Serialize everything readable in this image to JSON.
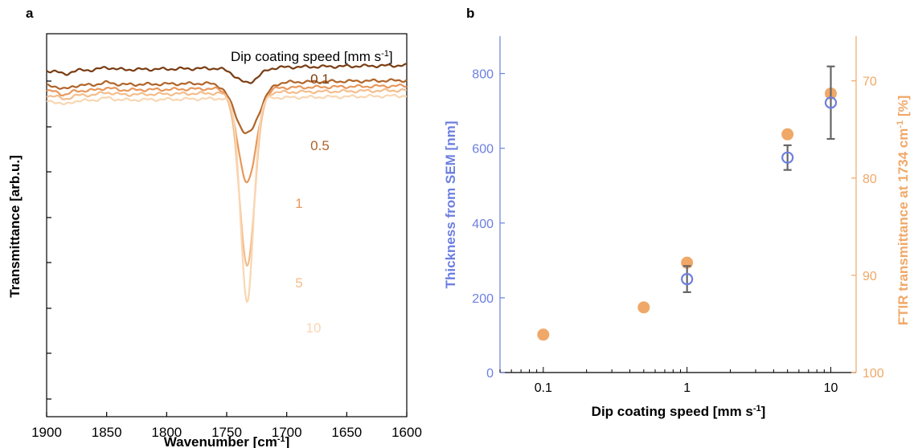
{
  "chart_data": [
    {
      "panel": "a",
      "type": "line",
      "xlabel": "Wavenumber [cm",
      "xlabel_sup": "-1",
      "xlabel_end": "]",
      "ylabel": "Transmittance [arb.u.]",
      "xlim": [
        1900,
        1600
      ],
      "x_ticks": [
        1900,
        1850,
        1800,
        1750,
        1700,
        1650,
        1600
      ],
      "legend_title": "Dip coating speed [mm  s",
      "legend_title_sup": "-1",
      "legend_title_end": "]",
      "peak_position": 1733,
      "series": [
        {
          "name": "0.1",
          "color": "#7a3c12",
          "baseline": 0.8,
          "depth": 0.33,
          "width": 13
        },
        {
          "name": "0.5",
          "color": "#b06428",
          "baseline": 0.47,
          "depth": 1.12,
          "width": 14
        },
        {
          "name": "1",
          "color": "#e8985c",
          "baseline": 0.35,
          "depth": 2.05,
          "width": 11
        },
        {
          "name": "5",
          "color": "#f4bd8c",
          "baseline": 0.25,
          "depth": 3.8,
          "width": 9
        },
        {
          "name": "10",
          "color": "#f9d6b2",
          "baseline": 0.13,
          "depth": 4.5,
          "width": 7.5
        }
      ]
    },
    {
      "panel": "b",
      "type": "scatter",
      "xlabel": "Dip coating speed [mm s",
      "xlabel_sup": "-1",
      "xlabel_end": "]",
      "ylabel_left": "Thickness from SEM [nm]",
      "ylabel_right": "FTIR transmittance at 1734 cm",
      "ylabel_right_sup": "-1",
      "ylabel_right_end": " [%]",
      "x_scale": "log",
      "xlim": [
        0.05,
        15
      ],
      "x_ticks": [
        "0.1",
        "1",
        "10"
      ],
      "ylim_left": [
        0,
        900
      ],
      "y_ticks_left": [
        0,
        200,
        400,
        600,
        800
      ],
      "ylim_right": [
        100,
        65.4
      ],
      "y_ticks_right": [
        70,
        80,
        90,
        100
      ],
      "thickness": {
        "color": "#6c7fe0",
        "points": [
          {
            "x": 1,
            "y": 250,
            "err": 35
          },
          {
            "x": 5,
            "y": 575,
            "err": 33
          },
          {
            "x": 10,
            "y": 722,
            "err": 97
          }
        ]
      },
      "ftir": {
        "color": "#f0a868",
        "points": [
          {
            "x": 0.1,
            "y": 96.1
          },
          {
            "x": 0.5,
            "y": 93.3
          },
          {
            "x": 1,
            "y": 88.7
          },
          {
            "x": 5,
            "y": 75.5
          },
          {
            "x": 10,
            "y": 71.3
          }
        ]
      }
    }
  ]
}
